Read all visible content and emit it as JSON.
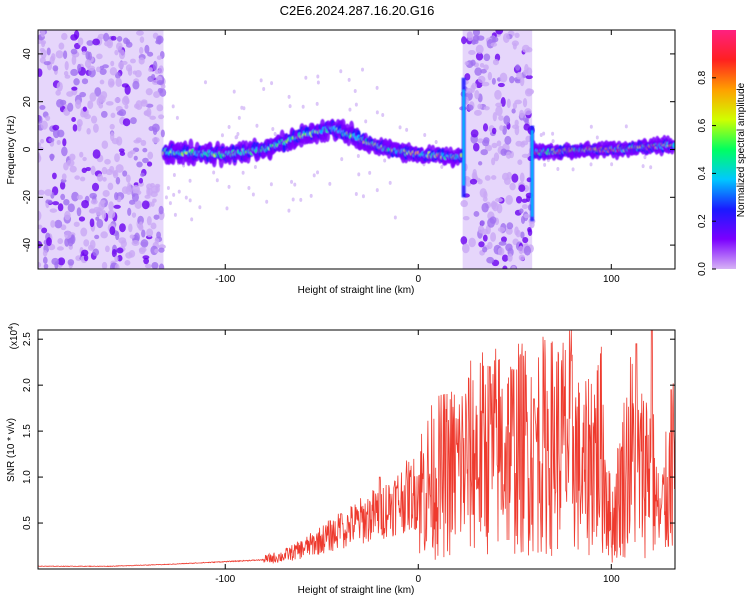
{
  "figure_title": "C2E6.2024.287.16.20.G16",
  "chart_data": [
    {
      "type": "heatmap",
      "title": "C2E6.2024.287.16.20.G16",
      "xlabel": "Height of straight line (km)",
      "ylabel": "Frequency (Hz)",
      "xlim": [
        -197,
        133
      ],
      "ylim": [
        -50,
        50
      ],
      "x_ticks": [
        -100,
        0,
        100
      ],
      "y_ticks": [
        -40,
        -20,
        0,
        20,
        40
      ],
      "colorbar": {
        "label": "Normalized spectral amplitude",
        "range": [
          0,
          1
        ],
        "ticks": [
          "0.0",
          "0.2",
          "0.4",
          "0.6",
          "0.8"
        ]
      },
      "ridge_frequency": [
        {
          "x": -195,
          "y": -2
        },
        {
          "x": -150,
          "y": -3
        },
        {
          "x": -130,
          "y": -1
        },
        {
          "x": -100,
          "y": -2
        },
        {
          "x": -80,
          "y": 0
        },
        {
          "x": -60,
          "y": 6
        },
        {
          "x": -45,
          "y": 9
        },
        {
          "x": -35,
          "y": 6
        },
        {
          "x": -20,
          "y": 1
        },
        {
          "x": 0,
          "y": -2
        },
        {
          "x": 20,
          "y": -3
        },
        {
          "x": 60,
          "y": -1
        },
        {
          "x": 100,
          "y": 0
        },
        {
          "x": 133,
          "y": 2
        }
      ],
      "noise_bands": [
        [
          -197,
          -132
        ],
        [
          23,
          59
        ]
      ]
    },
    {
      "type": "line",
      "xlabel": "Height of straight line (km)",
      "ylabel": "SNR (10 * v/v)",
      "y_multiplier": "(x10",
      "y_multiplier_exp": "4",
      "y_multiplier_close": ")",
      "xlim": [
        -197,
        133
      ],
      "ylim": [
        0,
        2.6
      ],
      "x_ticks": [
        -100,
        0,
        100
      ],
      "y_ticks": [
        0.5,
        1.0,
        1.5,
        2.0,
        2.5
      ],
      "series": [
        {
          "color": "#ee3a2e",
          "x": [
            -197,
            -160,
            -130,
            -110,
            -90,
            -80,
            -70,
            -60,
            -50,
            -40,
            -30,
            -20,
            -10,
            0,
            10,
            20,
            30,
            40,
            50,
            60,
            70,
            80,
            85,
            90,
            95,
            100,
            105,
            110,
            115,
            120,
            125,
            133
          ],
          "y": [
            0.03,
            0.03,
            0.05,
            0.07,
            0.09,
            0.1,
            0.14,
            0.22,
            0.32,
            0.42,
            0.52,
            0.62,
            0.75,
            0.85,
            1.0,
            1.1,
            1.25,
            1.3,
            1.3,
            1.35,
            1.35,
            1.4,
            0.95,
            1.3,
            1.3,
            0.45,
            0.9,
            1.3,
            1.05,
            1.2,
            0.5,
            1.2
          ],
          "peaks": [
            {
              "x": 37,
              "y": 2.2
            },
            {
              "x": 60,
              "y": 1.85
            },
            {
              "x": 113,
              "y": 2.45
            },
            {
              "x": 121,
              "y": 2.6
            },
            {
              "x": 131,
              "y": 1.95
            },
            {
              "x": -20,
              "y": 1.0
            },
            {
              "x": -40,
              "y": 0.6
            }
          ]
        }
      ]
    }
  ],
  "colors": {
    "line": "#ee3a2e",
    "noise": "#b48ef0",
    "colormap": [
      "#ffffff",
      "#d7b3f5",
      "#7b00ff",
      "#1a1aff",
      "#00c8ff",
      "#00ff60",
      "#d0ff00",
      "#ffa000",
      "#ff2020",
      "#ff2080"
    ]
  }
}
